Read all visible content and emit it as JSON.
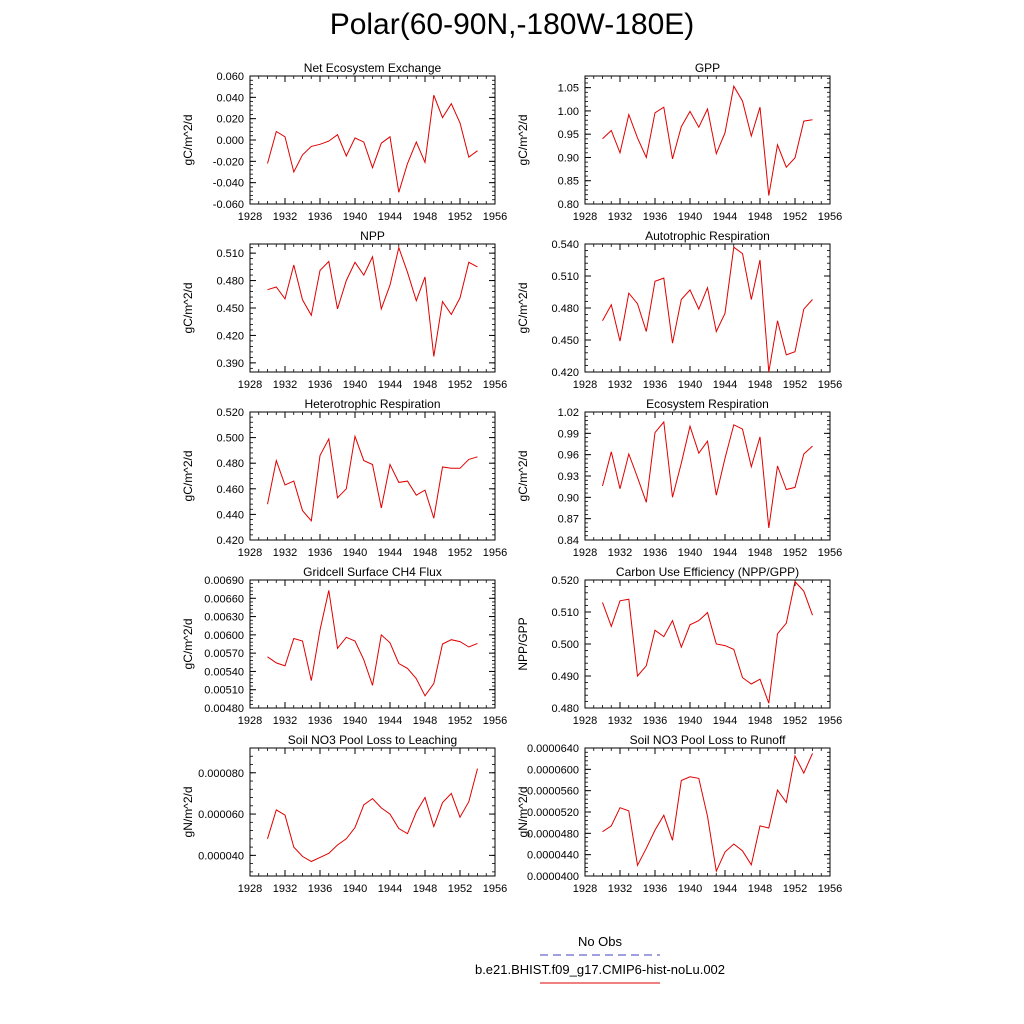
{
  "title": "Polar(60-90N,-180W-180E)",
  "chart_data": [
    {
      "type": "line",
      "title": "Net Ecosystem Exchange",
      "ylabel": "gC/m^2/d",
      "xlim": [
        1928,
        1956
      ],
      "xticks": [
        1928,
        1932,
        1936,
        1940,
        1944,
        1948,
        1952,
        1956
      ],
      "ylim": [
        -0.06,
        0.06
      ],
      "yticks": [
        -0.06,
        -0.04,
        -0.02,
        0.0,
        0.02,
        0.04,
        0.06
      ],
      "ytick_labels": [
        "-0.060",
        "-0.040",
        "-0.020",
        "0.000",
        "0.020",
        "0.040",
        "0.060"
      ],
      "x": [
        1930,
        1931,
        1932,
        1933,
        1934,
        1935,
        1936,
        1937,
        1938,
        1939,
        1940,
        1941,
        1942,
        1943,
        1944,
        1945,
        1946,
        1947,
        1948,
        1949,
        1950,
        1951,
        1952,
        1953,
        1954
      ],
      "y": [
        -0.022,
        0.008,
        0.003,
        -0.03,
        -0.014,
        -0.006,
        -0.004,
        -0.001,
        0.005,
        -0.015,
        0.002,
        -0.002,
        -0.026,
        -0.003,
        0.003,
        -0.049,
        -0.022,
        -0.002,
        -0.021,
        0.042,
        0.021,
        0.034,
        0.016,
        -0.016,
        -0.01
      ]
    },
    {
      "type": "line",
      "title": "GPP",
      "ylabel": "gC/m^2/d",
      "xlim": [
        1928,
        1956
      ],
      "xticks": [
        1928,
        1932,
        1936,
        1940,
        1944,
        1948,
        1952,
        1956
      ],
      "ylim": [
        0.8,
        1.075
      ],
      "yticks": [
        0.8,
        0.85,
        0.9,
        0.95,
        1.0,
        1.05
      ],
      "ytick_labels": [
        "0.80",
        "0.85",
        "0.90",
        "0.95",
        "1.00",
        "1.05"
      ],
      "x": [
        1930,
        1931,
        1932,
        1933,
        1934,
        1935,
        1936,
        1937,
        1938,
        1939,
        1940,
        1941,
        1942,
        1943,
        1944,
        1945,
        1946,
        1947,
        1948,
        1949,
        1950,
        1951,
        1952,
        1953,
        1954
      ],
      "y": [
        0.94,
        0.958,
        0.91,
        0.992,
        0.942,
        0.9,
        0.996,
        1.008,
        0.897,
        0.966,
        0.999,
        0.965,
        1.004,
        0.908,
        0.953,
        1.053,
        1.021,
        0.946,
        1.008,
        0.818,
        0.927,
        0.879,
        0.899,
        0.978,
        0.981
      ]
    },
    {
      "type": "line",
      "title": "NPP",
      "ylabel": "gC/m^2/d",
      "xlim": [
        1928,
        1956
      ],
      "xticks": [
        1928,
        1932,
        1936,
        1940,
        1944,
        1948,
        1952,
        1956
      ],
      "ylim": [
        0.38,
        0.52
      ],
      "yticks": [
        0.39,
        0.42,
        0.45,
        0.48,
        0.51
      ],
      "ytick_labels": [
        "0.390",
        "0.420",
        "0.450",
        "0.480",
        "0.510"
      ],
      "x": [
        1930,
        1931,
        1932,
        1933,
        1934,
        1935,
        1936,
        1937,
        1938,
        1939,
        1940,
        1941,
        1942,
        1943,
        1944,
        1945,
        1946,
        1947,
        1948,
        1949,
        1950,
        1951,
        1952,
        1953,
        1954
      ],
      "y": [
        0.47,
        0.473,
        0.46,
        0.497,
        0.459,
        0.442,
        0.491,
        0.501,
        0.449,
        0.48,
        0.5,
        0.486,
        0.506,
        0.449,
        0.475,
        0.516,
        0.489,
        0.458,
        0.484,
        0.397,
        0.457,
        0.443,
        0.461,
        0.5,
        0.495
      ]
    },
    {
      "type": "line",
      "title": "Autotrophic Respiration",
      "ylabel": "gC/m^2/d",
      "xlim": [
        1928,
        1956
      ],
      "xticks": [
        1928,
        1932,
        1936,
        1940,
        1944,
        1948,
        1952,
        1956
      ],
      "ylim": [
        0.42,
        0.54
      ],
      "yticks": [
        0.42,
        0.45,
        0.48,
        0.51,
        0.54
      ],
      "ytick_labels": [
        "0.420",
        "0.450",
        "0.480",
        "0.510",
        "0.540"
      ],
      "x": [
        1930,
        1931,
        1932,
        1933,
        1934,
        1935,
        1936,
        1937,
        1938,
        1939,
        1940,
        1941,
        1942,
        1943,
        1944,
        1945,
        1946,
        1947,
        1948,
        1949,
        1950,
        1951,
        1952,
        1953,
        1954
      ],
      "y": [
        0.468,
        0.483,
        0.449,
        0.494,
        0.484,
        0.458,
        0.505,
        0.508,
        0.447,
        0.488,
        0.497,
        0.479,
        0.499,
        0.458,
        0.475,
        0.537,
        0.531,
        0.488,
        0.525,
        0.42,
        0.468,
        0.436,
        0.439,
        0.479,
        0.488
      ]
    },
    {
      "type": "line",
      "title": "Heterotrophic Respiration",
      "ylabel": "gC/m^2/d",
      "xlim": [
        1928,
        1956
      ],
      "xticks": [
        1928,
        1932,
        1936,
        1940,
        1944,
        1948,
        1952,
        1956
      ],
      "ylim": [
        0.42,
        0.52
      ],
      "yticks": [
        0.42,
        0.44,
        0.46,
        0.48,
        0.5,
        0.52
      ],
      "ytick_labels": [
        "0.420",
        "0.440",
        "0.460",
        "0.480",
        "0.500",
        "0.520"
      ],
      "x": [
        1930,
        1931,
        1932,
        1933,
        1934,
        1935,
        1936,
        1937,
        1938,
        1939,
        1940,
        1941,
        1942,
        1943,
        1944,
        1945,
        1946,
        1947,
        1948,
        1949,
        1950,
        1951,
        1952,
        1953,
        1954
      ],
      "y": [
        0.448,
        0.482,
        0.463,
        0.466,
        0.443,
        0.435,
        0.486,
        0.499,
        0.453,
        0.46,
        0.501,
        0.482,
        0.479,
        0.445,
        0.479,
        0.465,
        0.466,
        0.455,
        0.459,
        0.437,
        0.477,
        0.476,
        0.476,
        0.483,
        0.485
      ]
    },
    {
      "type": "line",
      "title": "Ecosystem Respiration",
      "ylabel": "gC/m^2/d",
      "xlim": [
        1928,
        1956
      ],
      "xticks": [
        1928,
        1932,
        1936,
        1940,
        1944,
        1948,
        1952,
        1956
      ],
      "ylim": [
        0.84,
        1.02
      ],
      "yticks": [
        0.84,
        0.87,
        0.9,
        0.93,
        0.96,
        0.99,
        1.02
      ],
      "ytick_labels": [
        "0.84",
        "0.87",
        "0.90",
        "0.93",
        "0.96",
        "0.99",
        "1.02"
      ],
      "x": [
        1930,
        1931,
        1932,
        1933,
        1934,
        1935,
        1936,
        1937,
        1938,
        1939,
        1940,
        1941,
        1942,
        1943,
        1944,
        1945,
        1946,
        1947,
        1948,
        1949,
        1950,
        1951,
        1952,
        1953,
        1954
      ],
      "y": [
        0.916,
        0.964,
        0.912,
        0.961,
        0.928,
        0.893,
        0.991,
        1.006,
        0.9,
        0.948,
        1.0,
        0.962,
        0.979,
        0.903,
        0.955,
        1.002,
        0.996,
        0.943,
        0.985,
        0.857,
        0.944,
        0.911,
        0.914,
        0.961,
        0.972
      ]
    },
    {
      "type": "line",
      "title": "Gridcell Surface CH4 Flux",
      "ylabel": "gC/m^2/d",
      "xlim": [
        1928,
        1956
      ],
      "xticks": [
        1928,
        1932,
        1936,
        1940,
        1944,
        1948,
        1952,
        1956
      ],
      "ylim": [
        0.0048,
        0.0069
      ],
      "yticks": [
        0.0048,
        0.0051,
        0.0054,
        0.0057,
        0.006,
        0.0063,
        0.0066,
        0.0069
      ],
      "ytick_labels": [
        "0.00480",
        "0.00510",
        "0.00540",
        "0.00570",
        "0.00600",
        "0.00630",
        "0.00660",
        "0.00690"
      ],
      "x": [
        1930,
        1931,
        1932,
        1933,
        1934,
        1935,
        1936,
        1937,
        1938,
        1939,
        1940,
        1941,
        1942,
        1943,
        1944,
        1945,
        1946,
        1947,
        1948,
        1949,
        1950,
        1951,
        1952,
        1953,
        1954
      ],
      "y": [
        0.00564,
        0.00554,
        0.00549,
        0.00594,
        0.0059,
        0.00525,
        0.00608,
        0.00673,
        0.00578,
        0.00596,
        0.0059,
        0.00559,
        0.00517,
        0.006,
        0.00587,
        0.00553,
        0.00545,
        0.00528,
        0.005,
        0.0052,
        0.00585,
        0.00592,
        0.00589,
        0.0058,
        0.00586
      ]
    },
    {
      "type": "line",
      "title": "Carbon Use Efficiency (NPP/GPP)",
      "ylabel": "NPP/GPP",
      "xlim": [
        1928,
        1956
      ],
      "xticks": [
        1928,
        1932,
        1936,
        1940,
        1944,
        1948,
        1952,
        1956
      ],
      "ylim": [
        0.48,
        0.52
      ],
      "yticks": [
        0.48,
        0.49,
        0.5,
        0.51,
        0.52
      ],
      "ytick_labels": [
        "0.480",
        "0.490",
        "0.500",
        "0.510",
        "0.520"
      ],
      "x": [
        1930,
        1931,
        1932,
        1933,
        1934,
        1935,
        1936,
        1937,
        1938,
        1939,
        1940,
        1941,
        1942,
        1943,
        1944,
        1945,
        1946,
        1947,
        1948,
        1949,
        1950,
        1951,
        1952,
        1953,
        1954
      ],
      "y": [
        0.513,
        0.5055,
        0.5135,
        0.514,
        0.49,
        0.4932,
        0.5043,
        0.5023,
        0.5073,
        0.499,
        0.506,
        0.5073,
        0.5098,
        0.5,
        0.4995,
        0.4983,
        0.4895,
        0.4875,
        0.489,
        0.4815,
        0.5032,
        0.5065,
        0.5195,
        0.5165,
        0.509
      ]
    },
    {
      "type": "line",
      "title": "Soil NO3 Pool Loss to Leaching",
      "ylabel": "gN/m^2/d",
      "xlim": [
        1928,
        1956
      ],
      "xticks": [
        1928,
        1932,
        1936,
        1940,
        1944,
        1948,
        1952,
        1956
      ],
      "ylim": [
        3e-05,
        9.2e-05
      ],
      "yticks": [
        4e-05,
        6e-05,
        8e-05
      ],
      "ytick_labels": [
        "0.000040",
        "0.000060",
        "0.000080"
      ],
      "x": [
        1930,
        1931,
        1932,
        1933,
        1934,
        1935,
        1936,
        1937,
        1938,
        1939,
        1940,
        1941,
        1942,
        1943,
        1944,
        1945,
        1946,
        1947,
        1948,
        1949,
        1950,
        1951,
        1952,
        1953,
        1954
      ],
      "y": [
        4.8e-05,
        6.2e-05,
        5.95e-05,
        4.4e-05,
        3.95e-05,
        3.7e-05,
        3.9e-05,
        4.1e-05,
        4.5e-05,
        4.8e-05,
        5.35e-05,
        6.45e-05,
        6.75e-05,
        6.3e-05,
        6e-05,
        5.3e-05,
        5.05e-05,
        6.1e-05,
        6.8e-05,
        5.4e-05,
        6.55e-05,
        7e-05,
        5.85e-05,
        6.6e-05,
        8.2e-05
      ]
    },
    {
      "type": "line",
      "title": "Soil NO3 Pool Loss to Runoff",
      "ylabel": "gN/m^2/d",
      "xlim": [
        1928,
        1956
      ],
      "xticks": [
        1928,
        1932,
        1936,
        1940,
        1944,
        1948,
        1952,
        1956
      ],
      "ylim": [
        4e-05,
        6.4e-05
      ],
      "yticks": [
        4e-05,
        4.4e-05,
        4.8e-05,
        5.2e-05,
        5.6e-05,
        6e-05,
        6.4e-05
      ],
      "ytick_labels": [
        "0.0000400",
        "0.0000440",
        "0.0000480",
        "0.0000520",
        "0.0000560",
        "0.0000600",
        "0.0000640"
      ],
      "x": [
        1930,
        1931,
        1932,
        1933,
        1934,
        1935,
        1936,
        1937,
        1938,
        1939,
        1940,
        1941,
        1942,
        1943,
        1944,
        1945,
        1946,
        1947,
        1948,
        1949,
        1950,
        1951,
        1952,
        1953,
        1954
      ],
      "y": [
        4.83e-05,
        4.94e-05,
        5.28e-05,
        5.22e-05,
        4.2e-05,
        4.52e-05,
        4.86e-05,
        5.14e-05,
        4.67e-05,
        5.79e-05,
        5.86e-05,
        5.83e-05,
        5.12e-05,
        4.09e-05,
        4.45e-05,
        4.6e-05,
        4.47e-05,
        4.21e-05,
        4.94e-05,
        4.9e-05,
        5.61e-05,
        5.38e-05,
        6.25e-05,
        5.93e-05,
        6.3e-05
      ]
    }
  ],
  "legend": {
    "obs_label": "No Obs",
    "obs_color": "#2020c8",
    "model_label": "b.e21.BHIST.f09_g17.CMIP6-hist-noLu.002",
    "model_color": "#e00000"
  },
  "colors": {
    "series": "#e00000",
    "axis": "#000000"
  }
}
